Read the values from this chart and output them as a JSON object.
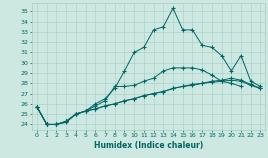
{
  "xlabel": "Humidex (Indice chaleur)",
  "bg_color": "#cce8e0",
  "grid_color": "#a8ccc8",
  "line_color": "#006666",
  "xlim": [
    -0.5,
    23.5
  ],
  "ylim": [
    23.5,
    35.8
  ],
  "yticks": [
    24,
    25,
    26,
    27,
    28,
    29,
    30,
    31,
    32,
    33,
    34,
    35
  ],
  "xticks": [
    0,
    1,
    2,
    3,
    4,
    5,
    6,
    7,
    8,
    9,
    10,
    11,
    12,
    13,
    14,
    15,
    16,
    17,
    18,
    19,
    20,
    21,
    22,
    23
  ],
  "series": [
    [
      25.7,
      24.0,
      24.0,
      24.2,
      25.0,
      25.3,
      26.0,
      26.5,
      27.5,
      29.2,
      31.0,
      31.5,
      33.2,
      33.5,
      35.3,
      33.2,
      33.2,
      31.7,
      31.5,
      30.7,
      29.2,
      30.7,
      28.2,
      27.7
    ],
    [
      25.7,
      24.0,
      24.0,
      24.3,
      25.0,
      25.3,
      25.8,
      26.3,
      27.7,
      27.7,
      27.8,
      28.2,
      28.5,
      29.2,
      29.5,
      29.5,
      29.5,
      29.3,
      28.8,
      28.2,
      28.0,
      27.7,
      null,
      null
    ],
    [
      25.7,
      24.0,
      24.0,
      24.3,
      25.0,
      25.3,
      25.5,
      25.8,
      26.0,
      26.3,
      26.5,
      26.8,
      27.0,
      27.2,
      27.5,
      27.7,
      27.8,
      28.0,
      28.1,
      28.2,
      28.3,
      28.2,
      27.8,
      27.5
    ],
    [
      25.7,
      24.0,
      24.0,
      24.3,
      25.0,
      25.3,
      25.5,
      25.8,
      26.0,
      26.3,
      26.5,
      26.8,
      27.0,
      27.2,
      27.5,
      27.7,
      27.9,
      28.0,
      28.2,
      28.3,
      28.5,
      28.3,
      27.9,
      27.5
    ]
  ]
}
